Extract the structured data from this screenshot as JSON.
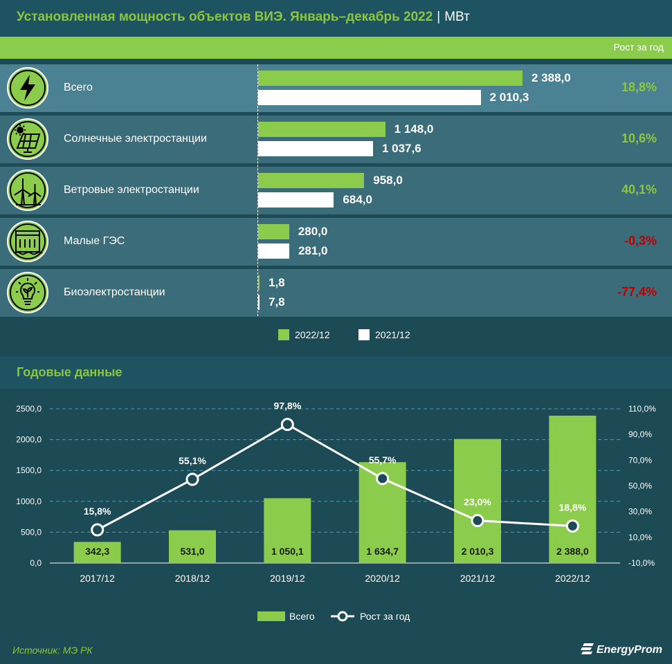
{
  "header": {
    "title": "Установленная мощность объектов ВИЭ. Январь–декабрь 2022",
    "separator": "|",
    "unit": "МВт",
    "growth_column_label": "Рост за год"
  },
  "breakdown": {
    "rows": [
      {
        "label": "Всего",
        "icon": "lightning-icon",
        "value_2022": 2388.0,
        "value_2021": 2010.3,
        "value_2022_label": "2 388,0",
        "value_2021_label": "2 010,3",
        "growth": "18,8%",
        "growth_color": "#8cc63f"
      },
      {
        "label": "Солнечные электростанции",
        "icon": "solar-panel-icon",
        "value_2022": 1148.0,
        "value_2021": 1037.6,
        "value_2022_label": "1 148,0",
        "value_2021_label": "1 037,6",
        "growth": "10,6%",
        "growth_color": "#8cc63f"
      },
      {
        "label": "Ветровые электростанции",
        "icon": "wind-turbine-icon",
        "value_2022": 958.0,
        "value_2021": 684.0,
        "value_2022_label": "958,0",
        "value_2021_label": "684,0",
        "growth": "40,1%",
        "growth_color": "#8cc63f"
      },
      {
        "label": "Малые ГЭС",
        "icon": "hydro-dam-icon",
        "value_2022": 280.0,
        "value_2021": 281.0,
        "value_2022_label": "280,0",
        "value_2021_label": "281,0",
        "growth": "-0,3%",
        "growth_color": "#c00000"
      },
      {
        "label": "Биоэлектростанции",
        "icon": "bio-bulb-icon",
        "value_2022": 1.8,
        "value_2021": 7.8,
        "value_2022_label": "1,8",
        "value_2021_label": "7,8",
        "growth": "-77,4%",
        "growth_color": "#c00000"
      }
    ],
    "legend": [
      {
        "label": "2022/12",
        "color": "#8ccc4c"
      },
      {
        "label": "2021/12",
        "color": "#ffffff"
      }
    ]
  },
  "annual": {
    "title": "Годовые данные"
  },
  "chart_data": {
    "type": "bar",
    "categories": [
      "2017/12",
      "2018/12",
      "2019/12",
      "2020/12",
      "2021/12",
      "2022/12"
    ],
    "series": [
      {
        "name": "Всего",
        "type": "bar",
        "axis": "left",
        "color": "#8ccc4c",
        "values": [
          342.3,
          531.0,
          1050.1,
          1634.7,
          2010.3,
          2388.0
        ],
        "labels": [
          "342,3",
          "531,0",
          "1 050,1",
          "1 634,7",
          "2 010,3",
          "2 388,0"
        ]
      },
      {
        "name": "Рост за год",
        "type": "line",
        "axis": "right",
        "color": "#ffffff",
        "values": [
          15.8,
          55.1,
          97.8,
          55.7,
          23.0,
          18.8
        ],
        "labels": [
          "15,8%",
          "55,1%",
          "97,8%",
          "55,7%",
          "23,0%",
          "18,8%"
        ]
      }
    ],
    "y_left": {
      "min": 0,
      "max": 2500,
      "ticks": [
        0,
        500,
        1000,
        1500,
        2000,
        2500
      ],
      "tick_labels": [
        "0,0",
        "500,0",
        "1000,0",
        "1500,0",
        "2000,0",
        "2500,0"
      ]
    },
    "y_right": {
      "min": -10,
      "max": 110,
      "ticks": [
        -10,
        10,
        30,
        50,
        70,
        90,
        110
      ],
      "tick_labels": [
        "-10,0%",
        "10,0%",
        "30,0%",
        "50,0%",
        "70,0%",
        "90,0%",
        "110,0%"
      ]
    },
    "grid": true,
    "legend_position": "bottom"
  },
  "footer": {
    "source": "Источник: МЭ РК",
    "logo_text": "EnergyProm"
  }
}
